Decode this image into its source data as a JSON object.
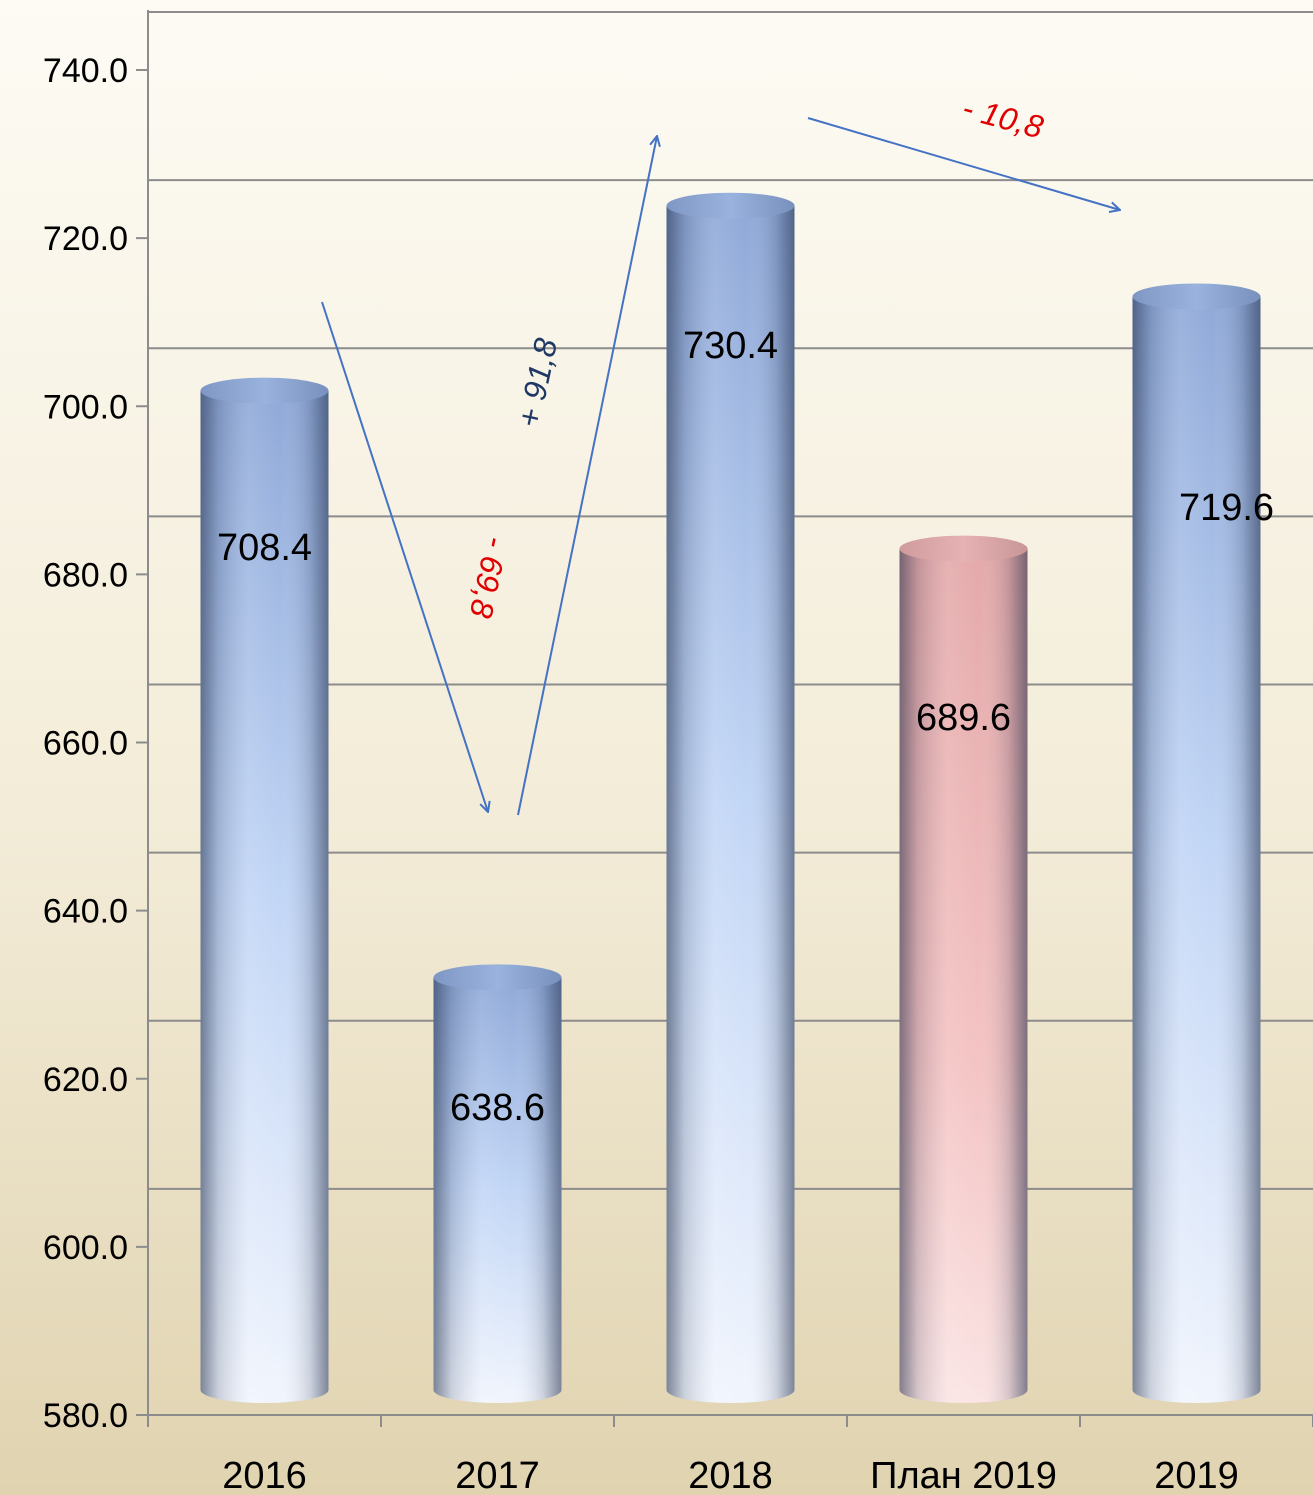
{
  "chart_data": {
    "type": "bar",
    "style": "3d-cylinder",
    "categories": [
      "2016",
      "2017",
      "2018",
      "План 2019",
      "2019"
    ],
    "values": [
      708.4,
      638.6,
      730.4,
      689.6,
      719.6
    ],
    "value_labels": [
      "708.4",
      "638.6",
      "730.4",
      "689.6",
      "719.6"
    ],
    "bar_colors": [
      "blue",
      "blue",
      "blue",
      "pink",
      "blue"
    ],
    "ylim": [
      580,
      740
    ],
    "yticks": [
      580,
      600,
      620,
      640,
      660,
      680,
      700,
      720,
      740
    ],
    "ytick_labels": [
      "580.0",
      "600.0",
      "620.0",
      "640.0",
      "660.0",
      "680.0",
      "700.0",
      "720.0",
      "740.0"
    ],
    "title": "",
    "xlabel": "",
    "ylabel": "",
    "grid": true,
    "legend": false,
    "annotations": [
      {
        "text": "- 69,8",
        "from": "2016",
        "to": "2017",
        "color": "#e00000"
      },
      {
        "text": "+ 91,8",
        "from": "2017",
        "to": "2018",
        "color": "#1f3864"
      },
      {
        "text": "- 10,8",
        "from": "2018",
        "to": "2019",
        "color": "#e00000"
      }
    ]
  },
  "colors": {
    "bar_blue_light": "#eef4ff",
    "bar_blue_mid": "#b4ccf2",
    "bar_blue_dark": "#6f86b0",
    "bar_pink_light": "#ffe2e2",
    "bar_pink_mid": "#f2bcbc",
    "bar_pink_dark": "#8a6a6a",
    "arrow": "#4472c4",
    "grid": "#8c8c8c",
    "background_top": "#fdfbf4",
    "background_bottom": "#e2d6b6"
  }
}
